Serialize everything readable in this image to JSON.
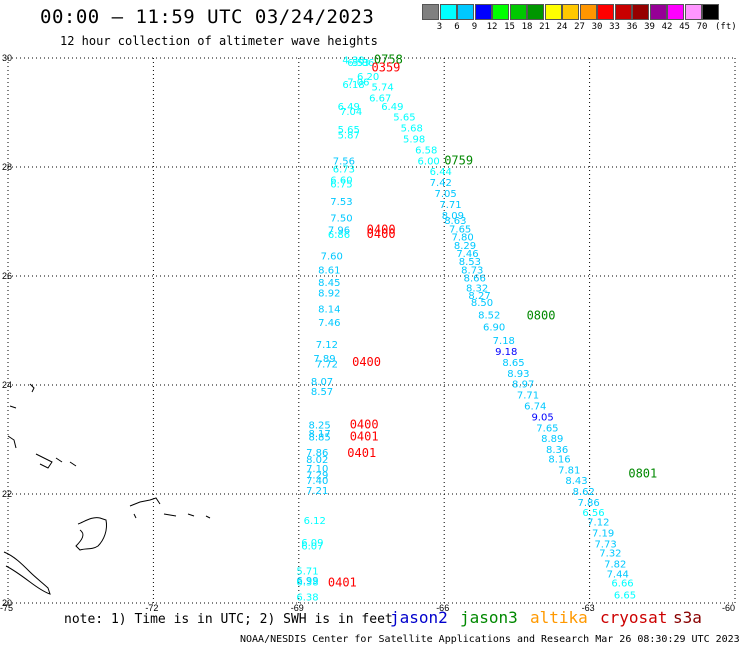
{
  "header": {
    "title": "00:00 – 11:59 UTC 03/24/2023",
    "subtitle": "12 hour collection of altimeter wave heights"
  },
  "legend": {
    "colors": [
      "#808080",
      "#00ffff",
      "#00c8ff",
      "#0000ff",
      "#00ff00",
      "#00c800",
      "#009600",
      "#ffff00",
      "#ffc800",
      "#ff9600",
      "#ff0000",
      "#c80000",
      "#960000",
      "#960096",
      "#ff00ff",
      "#ff96ff",
      "#000000"
    ],
    "labels": [
      "3",
      "6",
      "9",
      "12",
      "15",
      "18",
      "21",
      "24",
      "27",
      "30",
      "33",
      "36",
      "39",
      "42",
      "45",
      "70"
    ],
    "unit": "(ft)"
  },
  "axes": {
    "lat_labels": [
      "30",
      "28",
      "26",
      "24",
      "22",
      "20"
    ],
    "lon_labels": [
      "-75",
      "-72",
      "-69",
      "-66",
      "-63",
      "-60"
    ]
  },
  "chart_data": {
    "type": "scatter",
    "title": "00:00 – 11:59 UTC 03/24/2023",
    "xlim": [
      -75,
      -60
    ],
    "ylim": [
      20,
      30
    ],
    "wave_heights": [
      {
        "lon": -68.1,
        "lat": 29.9,
        "v": "4.38",
        "c": "#00ffff"
      },
      {
        "lon": -68.0,
        "lat": 29.85,
        "v": "6.53",
        "c": "#00ffff"
      },
      {
        "lon": -67.9,
        "lat": 29.85,
        "v": "5.86",
        "c": "#00ffff"
      },
      {
        "lon": -67.8,
        "lat": 29.6,
        "v": "6.20",
        "c": "#00ffff"
      },
      {
        "lon": -68.0,
        "lat": 29.5,
        "v": "7.06",
        "c": "#00ffff"
      },
      {
        "lon": -68.1,
        "lat": 29.45,
        "v": "6.18",
        "c": "#00ffff"
      },
      {
        "lon": -67.5,
        "lat": 29.4,
        "v": "5.74",
        "c": "#00ffff"
      },
      {
        "lon": -67.55,
        "lat": 29.2,
        "v": "6.67",
        "c": "#00ffff"
      },
      {
        "lon": -68.2,
        "lat": 29.05,
        "v": "6.49",
        "c": "#00ffff"
      },
      {
        "lon": -67.3,
        "lat": 29.05,
        "v": "6.49",
        "c": "#00ffff"
      },
      {
        "lon": -68.15,
        "lat": 28.95,
        "v": "7.04",
        "c": "#00ffff"
      },
      {
        "lon": -67.05,
        "lat": 28.85,
        "v": "5.65",
        "c": "#00ffff"
      },
      {
        "lon": -68.2,
        "lat": 28.62,
        "v": "5.65",
        "c": "#00ffff"
      },
      {
        "lon": -66.9,
        "lat": 28.65,
        "v": "5.68",
        "c": "#00ffff"
      },
      {
        "lon": -68.2,
        "lat": 28.52,
        "v": "5.87",
        "c": "#00ffff"
      },
      {
        "lon": -66.85,
        "lat": 28.45,
        "v": "5.98",
        "c": "#00ffff"
      },
      {
        "lon": -66.6,
        "lat": 28.25,
        "v": "6.58",
        "c": "#00ffff"
      },
      {
        "lon": -68.3,
        "lat": 28.05,
        "v": "7.56",
        "c": "#00c8ff"
      },
      {
        "lon": -66.55,
        "lat": 28.05,
        "v": "6.00",
        "c": "#00ffff"
      },
      {
        "lon": -68.3,
        "lat": 27.9,
        "v": "6.73",
        "c": "#00ffff"
      },
      {
        "lon": -66.3,
        "lat": 27.85,
        "v": "6.44",
        "c": "#00ffff"
      },
      {
        "lon": -68.35,
        "lat": 27.7,
        "v": "6.60",
        "c": "#00ffff"
      },
      {
        "lon": -66.3,
        "lat": 27.65,
        "v": "7.42",
        "c": "#00c8ff"
      },
      {
        "lon": -68.35,
        "lat": 27.62,
        "v": "6.75",
        "c": "#00ffff"
      },
      {
        "lon": -66.2,
        "lat": 27.45,
        "v": "7.05",
        "c": "#00c8ff"
      },
      {
        "lon": -68.35,
        "lat": 27.3,
        "v": "7.53",
        "c": "#00c8ff"
      },
      {
        "lon": -66.1,
        "lat": 27.25,
        "v": "7.71",
        "c": "#00c8ff"
      },
      {
        "lon": -68.35,
        "lat": 27.0,
        "v": "7.50",
        "c": "#00c8ff"
      },
      {
        "lon": -66.05,
        "lat": 27.05,
        "v": "8.09",
        "c": "#00c8ff"
      },
      {
        "lon": -66.0,
        "lat": 26.95,
        "v": "8.63",
        "c": "#00c8ff"
      },
      {
        "lon": -68.4,
        "lat": 26.78,
        "v": "7.96",
        "c": "#00c8ff"
      },
      {
        "lon": -68.4,
        "lat": 26.7,
        "v": "6.86",
        "c": "#00ffff"
      },
      {
        "lon": -65.9,
        "lat": 26.8,
        "v": "7.65",
        "c": "#00c8ff"
      },
      {
        "lon": -65.85,
        "lat": 26.65,
        "v": "7.80",
        "c": "#00c8ff"
      },
      {
        "lon": -65.8,
        "lat": 26.5,
        "v": "8.29",
        "c": "#00c8ff"
      },
      {
        "lon": -65.75,
        "lat": 26.35,
        "v": "7.46",
        "c": "#00c8ff"
      },
      {
        "lon": -68.55,
        "lat": 26.3,
        "v": "7.60",
        "c": "#00c8ff"
      },
      {
        "lon": -65.7,
        "lat": 26.2,
        "v": "8.53",
        "c": "#00c8ff"
      },
      {
        "lon": -68.6,
        "lat": 26.05,
        "v": "8.61",
        "c": "#00c8ff"
      },
      {
        "lon": -65.65,
        "lat": 26.05,
        "v": "8.73",
        "c": "#00c8ff"
      },
      {
        "lon": -68.6,
        "lat": 25.82,
        "v": "8.45",
        "c": "#00c8ff"
      },
      {
        "lon": -65.6,
        "lat": 25.9,
        "v": "8.66",
        "c": "#00c8ff"
      },
      {
        "lon": -68.6,
        "lat": 25.62,
        "v": "8.92",
        "c": "#00c8ff"
      },
      {
        "lon": -65.55,
        "lat": 25.72,
        "v": "8.32",
        "c": "#00c8ff"
      },
      {
        "lon": -65.5,
        "lat": 25.58,
        "v": "8.27",
        "c": "#00c8ff"
      },
      {
        "lon": -65.45,
        "lat": 25.45,
        "v": "8.50",
        "c": "#00c8ff"
      },
      {
        "lon": -68.6,
        "lat": 25.33,
        "v": "8.14",
        "c": "#00c8ff"
      },
      {
        "lon": -65.3,
        "lat": 25.22,
        "v": "8.52",
        "c": "#00c8ff"
      },
      {
        "lon": -68.6,
        "lat": 25.08,
        "v": "7.46",
        "c": "#00c8ff"
      },
      {
        "lon": -65.2,
        "lat": 25.0,
        "v": "6.90",
        "c": "#00c8ff"
      },
      {
        "lon": -68.65,
        "lat": 24.68,
        "v": "7.12",
        "c": "#00c8ff"
      },
      {
        "lon": -65.0,
        "lat": 24.75,
        "v": "7.18",
        "c": "#00c8ff"
      },
      {
        "lon": -64.95,
        "lat": 24.55,
        "v": "9.18",
        "c": "#0000ff"
      },
      {
        "lon": -68.7,
        "lat": 24.42,
        "v": "7.89",
        "c": "#00c8ff"
      },
      {
        "lon": -68.65,
        "lat": 24.32,
        "v": "7.72",
        "c": "#00c8ff"
      },
      {
        "lon": -64.8,
        "lat": 24.35,
        "v": "8.65",
        "c": "#00c8ff"
      },
      {
        "lon": -64.7,
        "lat": 24.15,
        "v": "8.93",
        "c": "#00c8ff"
      },
      {
        "lon": -68.75,
        "lat": 24.0,
        "v": "8.07",
        "c": "#00c8ff"
      },
      {
        "lon": -64.6,
        "lat": 23.95,
        "v": "8.97",
        "c": "#00c8ff"
      },
      {
        "lon": -68.75,
        "lat": 23.82,
        "v": "8.57",
        "c": "#00c8ff"
      },
      {
        "lon": -64.5,
        "lat": 23.75,
        "v": "7.71",
        "c": "#00c8ff"
      },
      {
        "lon": -64.35,
        "lat": 23.55,
        "v": "6.74",
        "c": "#00c8ff"
      },
      {
        "lon": -64.2,
        "lat": 23.35,
        "v": "9.05",
        "c": "#0000ff"
      },
      {
        "lon": -68.8,
        "lat": 23.2,
        "v": "8.25",
        "c": "#00c8ff"
      },
      {
        "lon": -64.1,
        "lat": 23.15,
        "v": "7.65",
        "c": "#00c8ff"
      },
      {
        "lon": -68.8,
        "lat": 23.05,
        "v": "8.17",
        "c": "#00c8ff"
      },
      {
        "lon": -68.8,
        "lat": 22.98,
        "v": "8.85",
        "c": "#00c8ff"
      },
      {
        "lon": -64.0,
        "lat": 22.95,
        "v": "8.89",
        "c": "#00c8ff"
      },
      {
        "lon": -63.9,
        "lat": 22.75,
        "v": "8.36",
        "c": "#00c8ff"
      },
      {
        "lon": -68.85,
        "lat": 22.7,
        "v": "7.86",
        "c": "#00c8ff"
      },
      {
        "lon": -63.85,
        "lat": 22.58,
        "v": "8.16",
        "c": "#00c8ff"
      },
      {
        "lon": -68.85,
        "lat": 22.57,
        "v": "8.02",
        "c": "#00c8ff"
      },
      {
        "lon": -68.85,
        "lat": 22.4,
        "v": "7.10",
        "c": "#00c8ff"
      },
      {
        "lon": -63.65,
        "lat": 22.38,
        "v": "7.81",
        "c": "#00c8ff"
      },
      {
        "lon": -68.85,
        "lat": 22.28,
        "v": "7.29",
        "c": "#00c8ff"
      },
      {
        "lon": -68.85,
        "lat": 22.18,
        "v": "7.40",
        "c": "#00c8ff"
      },
      {
        "lon": -63.5,
        "lat": 22.18,
        "v": "8.43",
        "c": "#00c8ff"
      },
      {
        "lon": -68.85,
        "lat": 22.0,
        "v": "7.21",
        "c": "#00c8ff"
      },
      {
        "lon": -63.35,
        "lat": 21.98,
        "v": "8.62",
        "c": "#00c8ff"
      },
      {
        "lon": -63.25,
        "lat": 21.78,
        "v": "7.86",
        "c": "#00c8ff"
      },
      {
        "lon": -63.15,
        "lat": 21.6,
        "v": "6.56",
        "c": "#00ffff"
      },
      {
        "lon": -68.9,
        "lat": 21.45,
        "v": "6.12",
        "c": "#00ffff"
      },
      {
        "lon": -63.05,
        "lat": 21.42,
        "v": "7.12",
        "c": "#00c8ff"
      },
      {
        "lon": -62.95,
        "lat": 21.22,
        "v": "7.19",
        "c": "#00c8ff"
      },
      {
        "lon": -68.95,
        "lat": 21.05,
        "v": "6.09",
        "c": "#00ffff"
      },
      {
        "lon": -68.95,
        "lat": 20.98,
        "v": "6.07",
        "c": "#00ffff"
      },
      {
        "lon": -62.9,
        "lat": 21.02,
        "v": "7.73",
        "c": "#00c8ff"
      },
      {
        "lon": -62.8,
        "lat": 20.85,
        "v": "7.32",
        "c": "#00c8ff"
      },
      {
        "lon": -62.7,
        "lat": 20.65,
        "v": "7.82",
        "c": "#00c8ff"
      },
      {
        "lon": -69.05,
        "lat": 20.52,
        "v": "5.71",
        "c": "#00ffff"
      },
      {
        "lon": -62.65,
        "lat": 20.47,
        "v": "7.44",
        "c": "#00c8ff"
      },
      {
        "lon": -69.05,
        "lat": 20.35,
        "v": "6.99",
        "c": "#00c8ff"
      },
      {
        "lon": -69.05,
        "lat": 20.32,
        "v": "6.38",
        "c": "#00ffff"
      },
      {
        "lon": -62.55,
        "lat": 20.3,
        "v": "6.66",
        "c": "#00ffff"
      },
      {
        "lon": -69.05,
        "lat": 20.05,
        "v": "6.38",
        "c": "#00ffff"
      },
      {
        "lon": -62.5,
        "lat": 20.08,
        "v": "6.65",
        "c": "#00ffff"
      }
    ],
    "pass_times": [
      {
        "lon": -67.45,
        "lat": 29.9,
        "t": "0758",
        "c": "#008800"
      },
      {
        "lon": -67.5,
        "lat": 29.75,
        "t": "0359",
        "c": "#ff0000"
      },
      {
        "lon": -66.0,
        "lat": 28.05,
        "t": "0759",
        "c": "#008800"
      },
      {
        "lon": -67.6,
        "lat": 26.78,
        "t": "0400",
        "c": "#ff0000"
      },
      {
        "lon": -67.6,
        "lat": 26.7,
        "t": "0400",
        "c": "#ff0000"
      },
      {
        "lon": -64.3,
        "lat": 25.2,
        "t": "0800",
        "c": "#008800"
      },
      {
        "lon": -67.9,
        "lat": 24.35,
        "t": "0400",
        "c": "#ff0000"
      },
      {
        "lon": -67.95,
        "lat": 23.2,
        "t": "0400",
        "c": "#ff0000"
      },
      {
        "lon": -67.95,
        "lat": 22.98,
        "t": "0401",
        "c": "#ff0000"
      },
      {
        "lon": -68.0,
        "lat": 22.68,
        "t": "0401",
        "c": "#ff0000"
      },
      {
        "lon": -62.2,
        "lat": 22.3,
        "t": "0801",
        "c": "#008800"
      },
      {
        "lon": -68.4,
        "lat": 20.3,
        "t": "0401",
        "c": "#ff0000"
      }
    ]
  },
  "footer": {
    "note": "note: 1) Time is in UTC; 2) SWH is in feet",
    "satellites": [
      {
        "name": "jason2",
        "color": "#0000cc"
      },
      {
        "name": "jason3",
        "color": "#008800"
      },
      {
        "name": "altika",
        "color": "#ff9900"
      },
      {
        "name": "cryosat",
        "color": "#cc0000"
      },
      {
        "name": "s3a",
        "color": "#880000"
      }
    ],
    "credit": "NOAA/NESDIS Center for Satellite Applications and Research   Mar 26 08:30:29 UTC 2023"
  }
}
